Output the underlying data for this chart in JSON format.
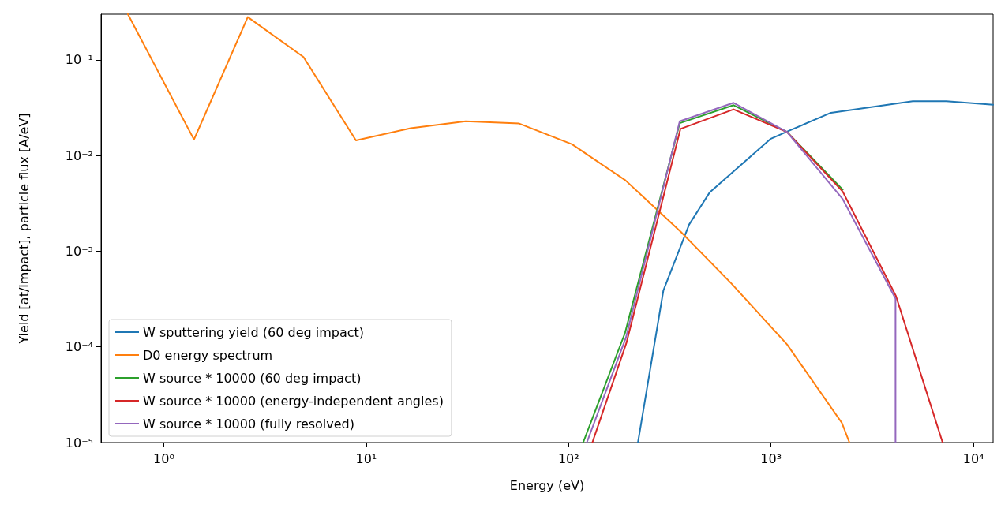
{
  "chart_data": {
    "type": "line",
    "xlabel": "Energy (eV)",
    "ylabel": "Yield [at/impact], particle flux [A/eV]",
    "log": "xy",
    "grid": false,
    "legend": "bottom left",
    "line_style": "solid",
    "marker": "none",
    "xlim": [
      0.49,
      12500
    ],
    "ylim": [
      1e-05,
      0.3
    ],
    "xticks": [
      {
        "value": 1,
        "label": "10⁰"
      },
      {
        "value": 10,
        "label": "10¹"
      },
      {
        "value": 100,
        "label": "10²"
      },
      {
        "value": 1000,
        "label": "10³"
      },
      {
        "value": 10000,
        "label": "10⁴"
      }
    ],
    "yticks": [
      {
        "value": 1e-05,
        "label": "10⁻⁵"
      },
      {
        "value": 0.0001,
        "label": "10⁻⁴"
      },
      {
        "value": 0.001,
        "label": "10⁻³"
      },
      {
        "value": 0.01,
        "label": "10⁻²"
      },
      {
        "value": 0.1,
        "label": "10⁻¹"
      }
    ],
    "series": [
      {
        "name": "W sputtering yield (60 deg impact)",
        "color": "#1f77b4",
        "x": [
          220,
          294,
          394,
          497,
          998,
          1216,
          1977,
          5010,
          7340,
          12500
        ],
        "values": [
          1e-05,
          0.00039,
          0.0019,
          0.0041,
          0.015,
          0.018,
          0.028,
          0.037,
          0.037,
          0.034
        ]
      },
      {
        "name": "D0 energy spectrum",
        "color": "#ff7f0e",
        "x": [
          0.665,
          1.41,
          2.6,
          4.9,
          8.9,
          16.6,
          31,
          57,
          104,
          191,
          358,
          637,
          1200,
          2240,
          2440
        ],
        "values": [
          0.3,
          0.0147,
          0.28,
          0.107,
          0.0144,
          0.0193,
          0.0228,
          0.0216,
          0.0131,
          0.0055,
          0.0016,
          0.00046,
          0.000106,
          1.6e-05,
          1e-05
        ]
      },
      {
        "name": "W source * 10000 (60 deg impact)",
        "color": "#2ca02c",
        "x": [
          118,
          190,
          354,
          653,
          1200,
          2260
        ],
        "values": [
          1e-05,
          0.00014,
          0.0218,
          0.0336,
          0.0176,
          0.0044
        ]
      },
      {
        "name": "W source * 10000 (energy-independent angles)",
        "color": "#d62728",
        "x": [
          131,
          193,
          357,
          653,
          1200,
          2260,
          4140,
          7040
        ],
        "values": [
          1e-05,
          0.00011,
          0.019,
          0.0304,
          0.0176,
          0.0042,
          0.00034,
          1e-05
        ]
      },
      {
        "name": "W source * 10000 (fully resolved)",
        "color": "#9467bd",
        "x": [
          123,
          192,
          354,
          653,
          1200,
          2260,
          4120,
          4120
        ],
        "values": [
          1e-05,
          0.000125,
          0.0228,
          0.0356,
          0.0176,
          0.0035,
          0.00032,
          1e-05
        ]
      }
    ]
  }
}
